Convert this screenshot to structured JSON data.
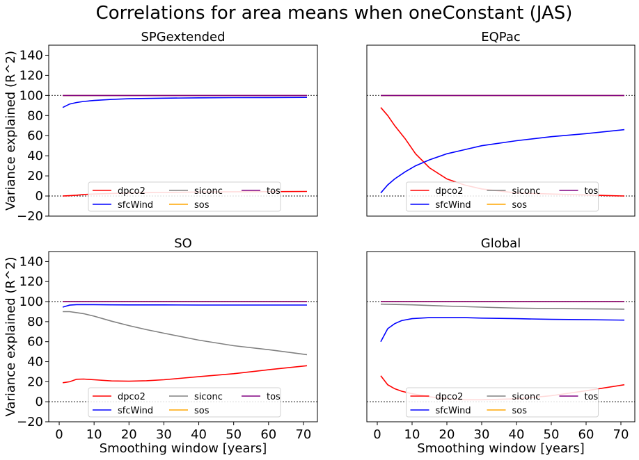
{
  "suptitle": "Correlations for area means when oneConstant (JAS)",
  "shared": {
    "ylabel": "Variance explained (R^2)",
    "xlabel": "Smoothing window [years]",
    "xlim": [
      -3,
      74
    ],
    "ylim": [
      -20,
      150
    ],
    "xticks": [
      0,
      10,
      20,
      30,
      40,
      50,
      60,
      70
    ],
    "yticks": [
      -20,
      0,
      20,
      40,
      60,
      80,
      100,
      120,
      140
    ],
    "hlines": [
      0,
      100
    ],
    "legend_labels": [
      "dpco2",
      "sfcWind",
      "siconc",
      "sos",
      "tos"
    ],
    "legend_placement": "lower center, 3 columns",
    "colors": {
      "dpco2": "#ff0000",
      "sfcWind": "#0000ff",
      "siconc": "#808080",
      "sos": "#ffa500",
      "tos": "#800080"
    }
  },
  "chart_data": [
    {
      "type": "line",
      "title": "SPGextended",
      "series": [
        {
          "name": "dpco2",
          "x": [
            1,
            3,
            5,
            7,
            10,
            15,
            20,
            30,
            40,
            50,
            60,
            71
          ],
          "values": [
            0,
            0.3,
            0.8,
            1.5,
            2,
            2.5,
            3,
            3.5,
            4,
            4.2,
            4.3,
            4.5
          ]
        },
        {
          "name": "sfcWind",
          "x": [
            1,
            3,
            5,
            7,
            10,
            15,
            20,
            30,
            40,
            50,
            60,
            71
          ],
          "values": [
            88,
            91.5,
            93,
            94,
            95,
            96,
            96.7,
            97.3,
            97.6,
            97.8,
            97.9,
            98
          ]
        },
        {
          "name": "siconc",
          "x": [
            1,
            71
          ],
          "values": [
            100,
            100
          ]
        },
        {
          "name": "sos",
          "x": [
            1,
            71
          ],
          "values": [
            100,
            100
          ]
        },
        {
          "name": "tos",
          "x": [
            1,
            71
          ],
          "values": [
            100,
            100
          ]
        }
      ]
    },
    {
      "type": "line",
      "title": "EQPac",
      "series": [
        {
          "name": "dpco2",
          "x": [
            1,
            3,
            5,
            8,
            11,
            15,
            20,
            25,
            30,
            40,
            50,
            60,
            71
          ],
          "values": [
            88,
            80,
            70,
            57,
            42,
            28,
            17,
            11,
            7,
            3,
            2,
            1,
            0
          ]
        },
        {
          "name": "sfcWind",
          "x": [
            1,
            3,
            5,
            8,
            11,
            15,
            20,
            25,
            30,
            40,
            50,
            60,
            71
          ],
          "values": [
            3,
            11,
            17,
            24,
            30,
            36,
            42,
            46,
            50,
            55,
            59,
            62,
            66
          ]
        },
        {
          "name": "siconc",
          "x": [
            1,
            71
          ],
          "values": [
            100,
            100
          ]
        },
        {
          "name": "sos",
          "x": [
            1,
            71
          ],
          "values": [
            100,
            100
          ]
        },
        {
          "name": "tos",
          "x": [
            1,
            71
          ],
          "values": [
            100,
            100
          ]
        }
      ]
    },
    {
      "type": "line",
      "title": "SO",
      "series": [
        {
          "name": "dpco2",
          "x": [
            1,
            3,
            5,
            7,
            10,
            15,
            20,
            25,
            30,
            40,
            50,
            60,
            71
          ],
          "values": [
            19,
            20,
            22.5,
            22.7,
            22,
            20.8,
            20.5,
            21,
            22,
            25,
            28,
            32,
            36
          ]
        },
        {
          "name": "sfcWind",
          "x": [
            1,
            3,
            5,
            7,
            10,
            15,
            20,
            30,
            40,
            50,
            60,
            71
          ],
          "values": [
            94.5,
            96.5,
            97,
            97,
            97,
            96.8,
            96.7,
            96.7,
            96.6,
            96.6,
            96.6,
            96.6
          ]
        },
        {
          "name": "siconc",
          "x": [
            1,
            3,
            5,
            7,
            10,
            15,
            20,
            25,
            30,
            40,
            50,
            60,
            71
          ],
          "values": [
            90,
            90,
            89,
            88,
            85.5,
            80.5,
            76,
            72,
            68.5,
            61.5,
            56,
            52,
            47
          ]
        },
        {
          "name": "sos",
          "x": [
            1,
            71
          ],
          "values": [
            100,
            100
          ]
        },
        {
          "name": "tos",
          "x": [
            1,
            71
          ],
          "values": [
            100,
            100
          ]
        }
      ]
    },
    {
      "type": "line",
      "title": "Global",
      "series": [
        {
          "name": "dpco2",
          "x": [
            1,
            3,
            5,
            7,
            10,
            15,
            20,
            25,
            30,
            40,
            50,
            60,
            71
          ],
          "values": [
            26,
            17,
            13,
            10.5,
            8,
            5,
            3,
            2,
            2,
            3,
            6,
            11,
            17
          ]
        },
        {
          "name": "sfcWind",
          "x": [
            1,
            3,
            5,
            7,
            10,
            15,
            20,
            25,
            30,
            40,
            50,
            60,
            71
          ],
          "values": [
            60,
            73,
            78,
            81,
            83,
            84,
            84,
            84,
            83.5,
            83,
            82.3,
            81.9,
            81.5
          ]
        },
        {
          "name": "siconc",
          "x": [
            1,
            10,
            20,
            30,
            40,
            50,
            60,
            71
          ],
          "values": [
            97.5,
            96.8,
            95.5,
            94.5,
            93.5,
            93,
            92.8,
            92.5
          ]
        },
        {
          "name": "sos",
          "x": [
            1,
            71
          ],
          "values": [
            100,
            100
          ]
        },
        {
          "name": "tos",
          "x": [
            1,
            71
          ],
          "values": [
            100,
            100
          ]
        }
      ]
    }
  ]
}
